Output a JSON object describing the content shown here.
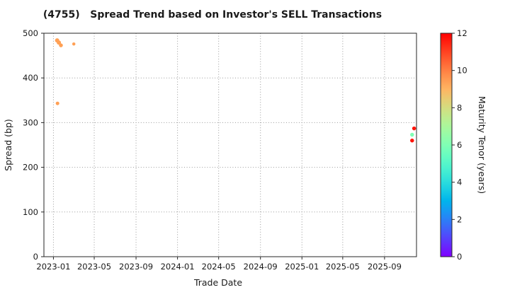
{
  "chart_data": {
    "type": "scatter",
    "title": "(4755)   Spread Trend based on Investor's SELL Transactions",
    "xlabel": "Trade Date",
    "ylabel": "Spread (bp)",
    "xlim": [
      "2022-12-04",
      "2025-12-04"
    ],
    "ylim": [
      0,
      500
    ],
    "grid": true,
    "x_ticks": [
      {
        "value": "2023-01-01",
        "label": "2023-01"
      },
      {
        "value": "2023-05-01",
        "label": "2023-05"
      },
      {
        "value": "2023-09-01",
        "label": "2023-09"
      },
      {
        "value": "2024-01-01",
        "label": "2024-01"
      },
      {
        "value": "2024-05-01",
        "label": "2024-05"
      },
      {
        "value": "2024-09-01",
        "label": "2024-09"
      },
      {
        "value": "2025-01-01",
        "label": "2025-01"
      },
      {
        "value": "2025-05-01",
        "label": "2025-05"
      },
      {
        "value": "2025-09-01",
        "label": "2025-09"
      }
    ],
    "y_ticks": [
      0,
      100,
      200,
      300,
      400,
      500
    ],
    "colorbar": {
      "label": "Maturity Tenor (years)",
      "min": 0,
      "max": 12,
      "ticks": [
        0,
        2,
        4,
        6,
        8,
        10,
        12
      ],
      "colormap": "rainbow"
    },
    "points": [
      {
        "date": "2023-01-12",
        "spread": 484,
        "tenor": 9.4,
        "size": 6
      },
      {
        "date": "2023-01-17",
        "spread": 479,
        "tenor": 9.4,
        "size": 6
      },
      {
        "date": "2023-01-23",
        "spread": 473,
        "tenor": 9.4,
        "size": 5.5
      },
      {
        "date": "2023-01-13",
        "spread": 343,
        "tenor": 9.4,
        "size": 5
      },
      {
        "date": "2023-03-02",
        "spread": 476,
        "tenor": 9.4,
        "size": 4.5
      },
      {
        "date": "2025-11-27",
        "spread": 287,
        "tenor": 11.7,
        "size": 5.5
      },
      {
        "date": "2025-11-21",
        "spread": 273,
        "tenor": 6.0,
        "size": 5.5
      },
      {
        "date": "2025-11-21",
        "spread": 260,
        "tenor": 11.7,
        "size": 5.5
      }
    ]
  }
}
